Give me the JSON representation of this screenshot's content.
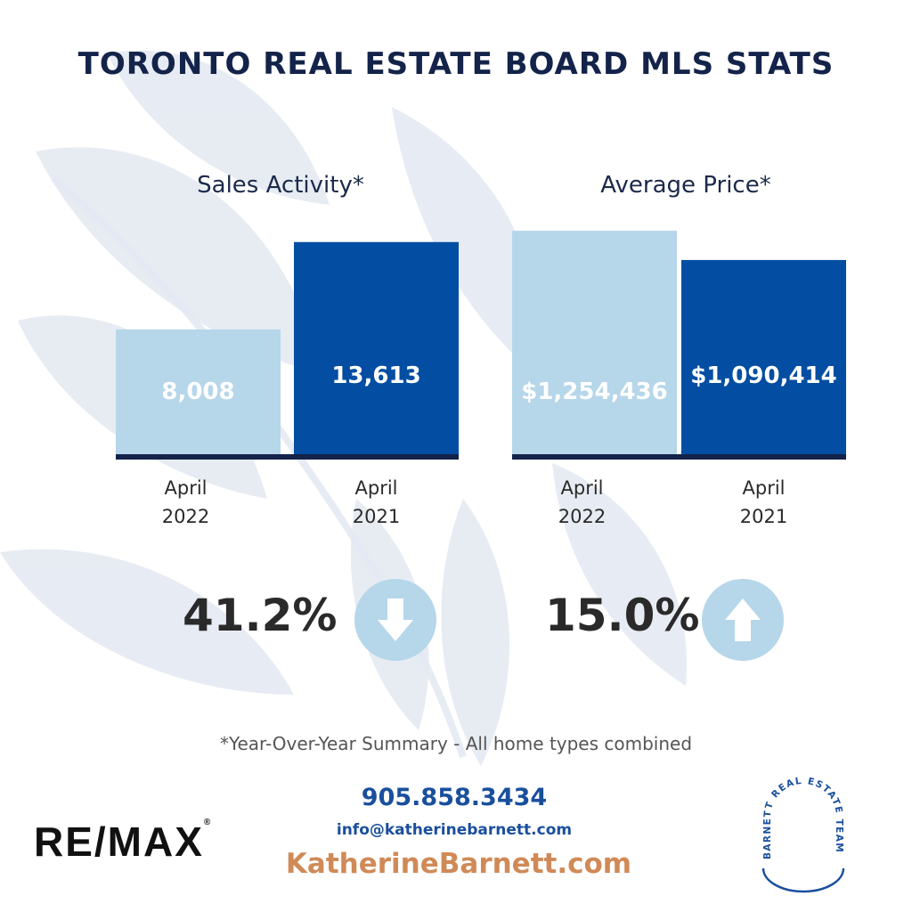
{
  "title": "TORONTO REAL ESTATE BOARD MLS STATS",
  "chart_data": [
    {
      "type": "bar",
      "title": "Sales Activity*",
      "categories": [
        "April 2022",
        "April 2021"
      ],
      "category_lines": [
        [
          "April",
          "2022"
        ],
        [
          "April",
          "2021"
        ]
      ],
      "values": [
        8008,
        13613
      ],
      "value_labels": [
        "8,008",
        "13,613"
      ],
      "colors": [
        "#b6d6ea",
        "#034ea2"
      ],
      "ylim": [
        0,
        16000
      ],
      "grid": false,
      "change": {
        "text": "41.2%",
        "direction": "down"
      }
    },
    {
      "type": "bar",
      "title": "Average Price*",
      "categories": [
        "April 2022",
        "April 2021"
      ],
      "category_lines": [
        [
          "April",
          "2022"
        ],
        [
          "April",
          "2021"
        ]
      ],
      "values": [
        1254436,
        1090414
      ],
      "value_labels": [
        "$1,254,436",
        "$1,090,414"
      ],
      "colors": [
        "#b6d6ea",
        "#034ea2"
      ],
      "ylim": [
        0,
        1400000
      ],
      "grid": false,
      "change": {
        "text": "15.0%",
        "direction": "up"
      }
    }
  ],
  "footnote": "*Year-Over-Year Summary - All home types combined",
  "contact": {
    "phone": "905.858.3434",
    "email": "info@katherinebarnett.com",
    "website": "KatherineBarnett.com"
  },
  "logos": {
    "remax": "RE/MAX",
    "remax_mark": "®",
    "team": "BARNETT REAL ESTATE TEAM"
  },
  "colors": {
    "title": "#14234a",
    "light_bar": "#b6d6ea",
    "dark_bar": "#034ea2",
    "baseline": "#14234a",
    "contact_blue": "#1a4f9c",
    "website_orange": "#d08a57",
    "arrow_circle": "#b6d6ea"
  }
}
